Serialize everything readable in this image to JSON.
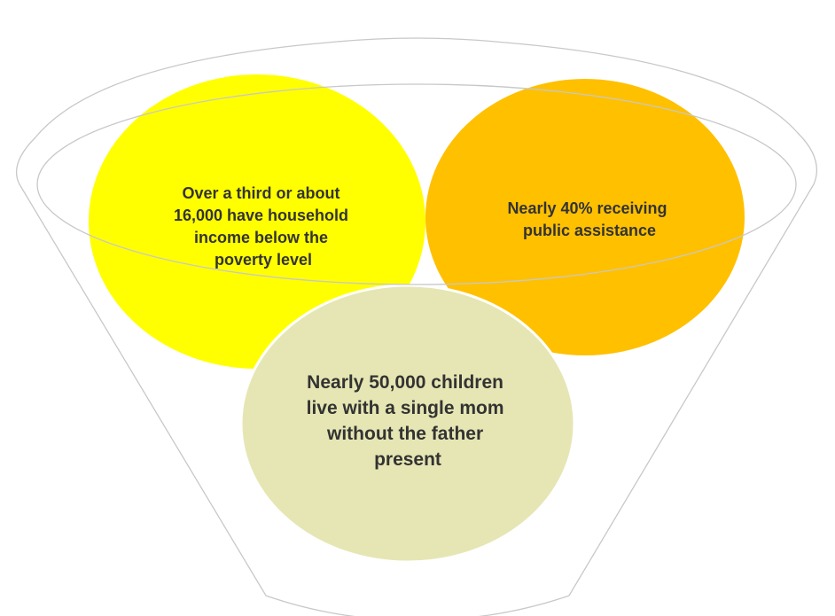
{
  "funnel": {
    "outline_color": "#c8c8c8",
    "items": [
      {
        "lines": [
          "Over a third or about",
          "16,000 have household",
          "income below the",
          "poverty level"
        ],
        "color": "#ffff00"
      },
      {
        "lines": [
          "Nearly 40% receiving",
          "public assistance"
        ],
        "color": "#ffc000"
      },
      {
        "lines": [
          "Nearly 50,000 children",
          "live with a single mom",
          "without the father",
          "present"
        ],
        "color": "#e6e6b4"
      }
    ]
  }
}
